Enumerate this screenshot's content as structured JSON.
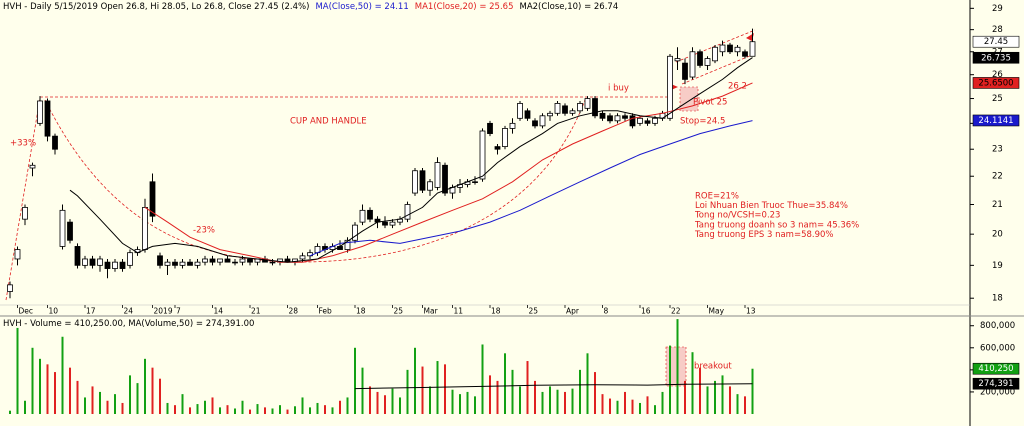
{
  "chart_data": [
    {
      "type": "candlestick",
      "title": "HVH - Daily 5/15/2019 Open 26.8, Hi 28.05, Lo 26.8, Close 27.45 (2.4%)",
      "categories": [
        null,
        "Dec",
        null,
        null,
        null,
        "10",
        null,
        null,
        null,
        null,
        "17",
        null,
        null,
        null,
        null,
        "24",
        null,
        null,
        null,
        "2019",
        null,
        null,
        "7",
        null,
        null,
        null,
        null,
        "14",
        null,
        null,
        null,
        null,
        "21",
        null,
        null,
        null,
        null,
        "28",
        null,
        null,
        null,
        "Feb",
        null,
        null,
        null,
        null,
        "18",
        null,
        null,
        null,
        null,
        "25",
        null,
        null,
        null,
        "Mar",
        null,
        null,
        null,
        "11",
        null,
        null,
        null,
        null,
        "18",
        null,
        null,
        null,
        null,
        "25",
        null,
        null,
        null,
        null,
        "Apr",
        null,
        null,
        null,
        null,
        "8",
        null,
        null,
        null,
        null,
        "16",
        null,
        null,
        null,
        "22",
        null,
        null,
        null,
        null,
        "May",
        null,
        null,
        null,
        null,
        "13",
        null
      ],
      "ohlc": [
        [
          18.2,
          18.5,
          18.0,
          18.4
        ],
        [
          19.2,
          19.6,
          19.0,
          19.5
        ],
        [
          20.5,
          21.0,
          20.3,
          20.9
        ],
        [
          22.3,
          22.5,
          22.0,
          22.4
        ],
        [
          24.0,
          25.1,
          23.9,
          24.9
        ],
        [
          24.9,
          25.0,
          23.3,
          23.5
        ],
        [
          23.5,
          23.6,
          22.8,
          23.0
        ],
        [
          19.6,
          21.0,
          19.5,
          20.8
        ],
        [
          20.4,
          20.5,
          19.7,
          19.8
        ],
        [
          19.6,
          19.7,
          18.9,
          19.0
        ],
        [
          19.0,
          19.3,
          18.9,
          19.2
        ],
        [
          19.2,
          19.3,
          18.9,
          19.0
        ],
        [
          19.0,
          19.3,
          18.8,
          19.2
        ],
        [
          19.1,
          19.2,
          18.6,
          18.9
        ],
        [
          18.9,
          19.2,
          18.8,
          19.1
        ],
        [
          19.1,
          19.2,
          18.8,
          18.9
        ],
        [
          19.0,
          19.5,
          18.9,
          19.4
        ],
        [
          19.4,
          19.6,
          19.3,
          19.5
        ],
        [
          19.5,
          21.2,
          19.4,
          20.9
        ],
        [
          21.8,
          22.1,
          20.4,
          20.6
        ],
        [
          19.3,
          19.4,
          18.9,
          19.0
        ],
        [
          19.0,
          19.2,
          18.7,
          19.1
        ],
        [
          19.1,
          19.2,
          18.9,
          19.0
        ],
        [
          19.0,
          19.2,
          18.9,
          19.1
        ],
        [
          19.1,
          19.2,
          19.0,
          19.0
        ],
        [
          19.0,
          19.2,
          18.9,
          19.1
        ],
        [
          19.1,
          19.3,
          19.0,
          19.2
        ],
        [
          19.2,
          19.3,
          19.0,
          19.1
        ],
        [
          19.1,
          19.2,
          19.0,
          19.2
        ],
        [
          19.2,
          19.3,
          19.1,
          19.1
        ],
        [
          19.1,
          19.2,
          19.0,
          19.1
        ],
        [
          19.1,
          19.3,
          19.0,
          19.2
        ],
        [
          19.2,
          19.2,
          19.0,
          19.1
        ],
        [
          19.1,
          19.2,
          19.0,
          19.2
        ],
        [
          19.2,
          19.3,
          19.1,
          19.1
        ],
        [
          19.1,
          19.2,
          19.0,
          19.1
        ],
        [
          19.1,
          19.2,
          19.0,
          19.2
        ],
        [
          19.2,
          19.3,
          19.1,
          19.1
        ],
        [
          19.1,
          19.2,
          19.0,
          19.2
        ],
        [
          19.2,
          19.4,
          19.1,
          19.3
        ],
        [
          19.3,
          19.5,
          19.2,
          19.4
        ],
        [
          19.4,
          19.7,
          19.3,
          19.6
        ],
        [
          19.6,
          19.7,
          19.4,
          19.5
        ],
        [
          19.5,
          19.7,
          19.4,
          19.6
        ],
        [
          19.6,
          19.8,
          19.5,
          19.5
        ],
        [
          19.5,
          19.9,
          19.4,
          19.8
        ],
        [
          19.8,
          20.4,
          19.7,
          20.3
        ],
        [
          20.4,
          21.0,
          20.3,
          20.8
        ],
        [
          20.8,
          20.9,
          20.4,
          20.5
        ],
        [
          20.5,
          20.6,
          20.2,
          20.4
        ],
        [
          20.4,
          20.6,
          20.2,
          20.3
        ],
        [
          20.3,
          20.5,
          20.2,
          20.4
        ],
        [
          20.4,
          20.6,
          20.3,
          20.5
        ],
        [
          20.5,
          21.1,
          20.4,
          21.0
        ],
        [
          21.4,
          22.3,
          21.3,
          22.2
        ],
        [
          22.2,
          22.3,
          21.4,
          21.5
        ],
        [
          21.5,
          21.9,
          21.3,
          21.8
        ],
        [
          21.6,
          22.7,
          21.5,
          22.5
        ],
        [
          22.4,
          22.5,
          21.3,
          21.4
        ],
        [
          21.4,
          21.7,
          21.2,
          21.6
        ],
        [
          21.6,
          21.9,
          21.4,
          21.7
        ],
        [
          21.7,
          21.9,
          21.6,
          21.8
        ],
        [
          21.8,
          22.0,
          21.7,
          21.8
        ],
        [
          21.9,
          23.8,
          21.8,
          23.7
        ],
        [
          24.0,
          24.1,
          23.5,
          23.6
        ],
        [
          23.1,
          23.2,
          22.8,
          23.0
        ],
        [
          23.1,
          23.9,
          23.0,
          23.8
        ],
        [
          23.8,
          24.2,
          23.6,
          24.0
        ],
        [
          24.2,
          24.9,
          24.1,
          24.8
        ],
        [
          24.5,
          24.6,
          24.1,
          24.2
        ],
        [
          24.1,
          24.2,
          23.8,
          23.9
        ],
        [
          23.9,
          24.4,
          23.8,
          24.3
        ],
        [
          24.3,
          24.5,
          24.1,
          24.4
        ],
        [
          24.4,
          24.9,
          24.3,
          24.8
        ],
        [
          24.7,
          24.8,
          24.3,
          24.4
        ],
        [
          24.4,
          24.6,
          24.3,
          24.5
        ],
        [
          24.5,
          24.9,
          24.4,
          24.8
        ],
        [
          24.6,
          25.1,
          24.5,
          25.0
        ],
        [
          25.0,
          25.1,
          24.2,
          24.3
        ],
        [
          24.4,
          24.5,
          24.1,
          24.2
        ],
        [
          24.3,
          24.4,
          24.0,
          24.1
        ],
        [
          24.1,
          24.4,
          24.0,
          24.3
        ],
        [
          24.3,
          24.4,
          24.1,
          24.2
        ],
        [
          24.3,
          24.4,
          23.8,
          23.9
        ],
        [
          24.0,
          24.3,
          23.9,
          24.2
        ],
        [
          24.1,
          24.2,
          23.9,
          24.0
        ],
        [
          24.0,
          24.3,
          23.9,
          24.2
        ],
        [
          24.2,
          24.5,
          24.1,
          24.4
        ],
        [
          24.2,
          26.9,
          24.1,
          26.8
        ],
        [
          26.6,
          27.2,
          26.2,
          26.7
        ],
        [
          26.5,
          26.7,
          25.6,
          25.8
        ],
        [
          25.9,
          27.2,
          25.8,
          27.0
        ],
        [
          27.0,
          27.1,
          26.3,
          26.4
        ],
        [
          26.4,
          26.8,
          26.2,
          26.7
        ],
        [
          26.6,
          27.3,
          26.5,
          27.2
        ],
        [
          27.0,
          27.5,
          26.8,
          27.3
        ],
        [
          27.3,
          27.4,
          26.9,
          27.0
        ],
        [
          27.0,
          27.3,
          26.8,
          27.2
        ],
        [
          27.0,
          27.1,
          26.7,
          26.8
        ],
        [
          26.8,
          28.05,
          26.8,
          27.45
        ]
      ],
      "up_color": "#ffffff",
      "down_color": "#000000",
      "lines": [
        {
          "name": "MA(Close,50) = 24.11",
          "color": "#1a1acc",
          "x": [
            40,
            44,
            48,
            52,
            56,
            60,
            64,
            68,
            72,
            76,
            80,
            84,
            88,
            92,
            96,
            99
          ],
          "values": [
            19.3,
            19.7,
            19.8,
            19.7,
            19.9,
            20.1,
            20.4,
            20.8,
            21.3,
            21.8,
            22.3,
            22.8,
            23.2,
            23.6,
            23.9,
            24.11
          ]
        },
        {
          "name": "MA1(Close,20) = 25.65",
          "color": "#e02020",
          "x": [
            18,
            21,
            24,
            28,
            32,
            36,
            39,
            43,
            47,
            51,
            55,
            59,
            63,
            67,
            71,
            75,
            79,
            83,
            87,
            91,
            95,
            99
          ],
          "values": [
            20.9,
            20.4,
            19.9,
            19.5,
            19.3,
            19.1,
            19.1,
            19.3,
            19.6,
            20.0,
            20.4,
            20.8,
            21.2,
            21.8,
            22.6,
            23.2,
            23.7,
            24.2,
            24.4,
            24.7,
            25.1,
            25.65
          ]
        },
        {
          "name": "MA2(Close,10) = 26.74",
          "color": "#000000",
          "x": [
            8,
            9,
            12,
            15,
            17,
            19,
            22,
            25,
            29,
            33,
            37,
            41,
            44,
            47,
            49,
            52,
            55,
            57,
            60,
            63,
            65,
            68,
            71,
            73,
            76,
            79,
            81,
            84,
            87,
            89,
            92,
            95,
            97,
            99
          ],
          "values": [
            21.5,
            21.3,
            20.5,
            19.7,
            19.4,
            19.6,
            19.7,
            19.6,
            19.3,
            19.2,
            19.1,
            19.2,
            19.6,
            20.1,
            20.4,
            20.5,
            20.9,
            21.4,
            21.7,
            22.0,
            22.5,
            23.1,
            23.6,
            24.0,
            24.3,
            24.5,
            24.5,
            24.3,
            24.2,
            24.6,
            25.2,
            25.8,
            26.3,
            26.74
          ]
        }
      ],
      "ylim": [
        17.8,
        29.4
      ],
      "log": true,
      "yticks": [
        18,
        19,
        20,
        21,
        22,
        23,
        24,
        25,
        26,
        27,
        28,
        29
      ],
      "price_tags": [
        {
          "value": 27.45,
          "label": "27.45",
          "color": "#ffffff",
          "text_color": "#000000"
        },
        {
          "value": 26.735,
          "label": "26.735",
          "color": "#000000",
          "text_color": "#ffffff"
        },
        {
          "value": 25.65,
          "label": "25.6500",
          "color": "#e02020",
          "text_color": "#000000"
        },
        {
          "value": 24.1141,
          "label": "24.1141",
          "color": "#1a1acc",
          "text_color": "#ffffff"
        }
      ],
      "annotations": [
        "+33%",
        "-23%",
        "CUP AND HANDLE",
        "i buy",
        "Pivot 25",
        "Stop=24.5",
        "26.2"
      ],
      "notes": [
        "ROE=21%",
        "Loi Nhuan Bien Truoc Thue=35.84%",
        "Tong no/VCSH=0.23",
        "Tang truong doanh so 3 nam= 45.36%",
        "Tang truong EPS 3 nam=58.90%"
      ]
    },
    {
      "type": "bar",
      "title": "HVH - Volume = 410,250.00, MA(Volume,50) = 274,391.00",
      "values": [
        30000,
        780000,
        120000,
        600000,
        500000,
        450000,
        380000,
        700000,
        420000,
        300000,
        150000,
        250000,
        200000,
        120000,
        180000,
        100000,
        350000,
        280000,
        500000,
        420000,
        320000,
        100000,
        80000,
        180000,
        60000,
        90000,
        120000,
        150000,
        60000,
        80000,
        50000,
        120000,
        40000,
        90000,
        60000,
        50000,
        80000,
        40000,
        70000,
        150000,
        60000,
        100000,
        80000,
        60000,
        120000,
        150000,
        600000,
        420000,
        250000,
        200000,
        170000,
        230000,
        150000,
        400000,
        600000,
        430000,
        250000,
        480000,
        450000,
        220000,
        180000,
        200000,
        160000,
        630000,
        350000,
        300000,
        550000,
        400000,
        250000,
        480000,
        300000,
        200000,
        250000,
        220000,
        200000,
        230000,
        400000,
        550000,
        380000,
        180000,
        140000,
        120000,
        200000,
        130000,
        100000,
        160000,
        80000,
        200000,
        620000,
        860000,
        300000,
        560000,
        420000,
        250000,
        300000,
        350000,
        250000,
        180000,
        160000,
        410250
      ],
      "up_color": "#12a012",
      "down_color": "#e02020",
      "lines": [
        {
          "color": "#000000",
          "x": [
            46,
            55,
            63,
            70,
            78,
            85,
            90,
            95,
            99
          ],
          "values": [
            230000,
            240000,
            250000,
            260000,
            265000,
            262000,
            270000,
            272000,
            274391
          ]
        }
      ],
      "ylim": [
        0,
        870000
      ],
      "yticks": [
        {
          "value": 200000,
          "label": "200,000"
        },
        {
          "value": 400000,
          "label": "400,000"
        },
        {
          "value": 600000,
          "label": "600,000"
        },
        {
          "value": 800000,
          "label": "800,000"
        }
      ],
      "price_tags": [
        {
          "value": 410250,
          "label": "410,250",
          "color": "#12a012",
          "text_color": "#ffffff"
        },
        {
          "value": 274391,
          "label": "274,391",
          "color": "#000000",
          "text_color": "#ffffff"
        }
      ],
      "annotations": [
        "breakout"
      ]
    }
  ]
}
